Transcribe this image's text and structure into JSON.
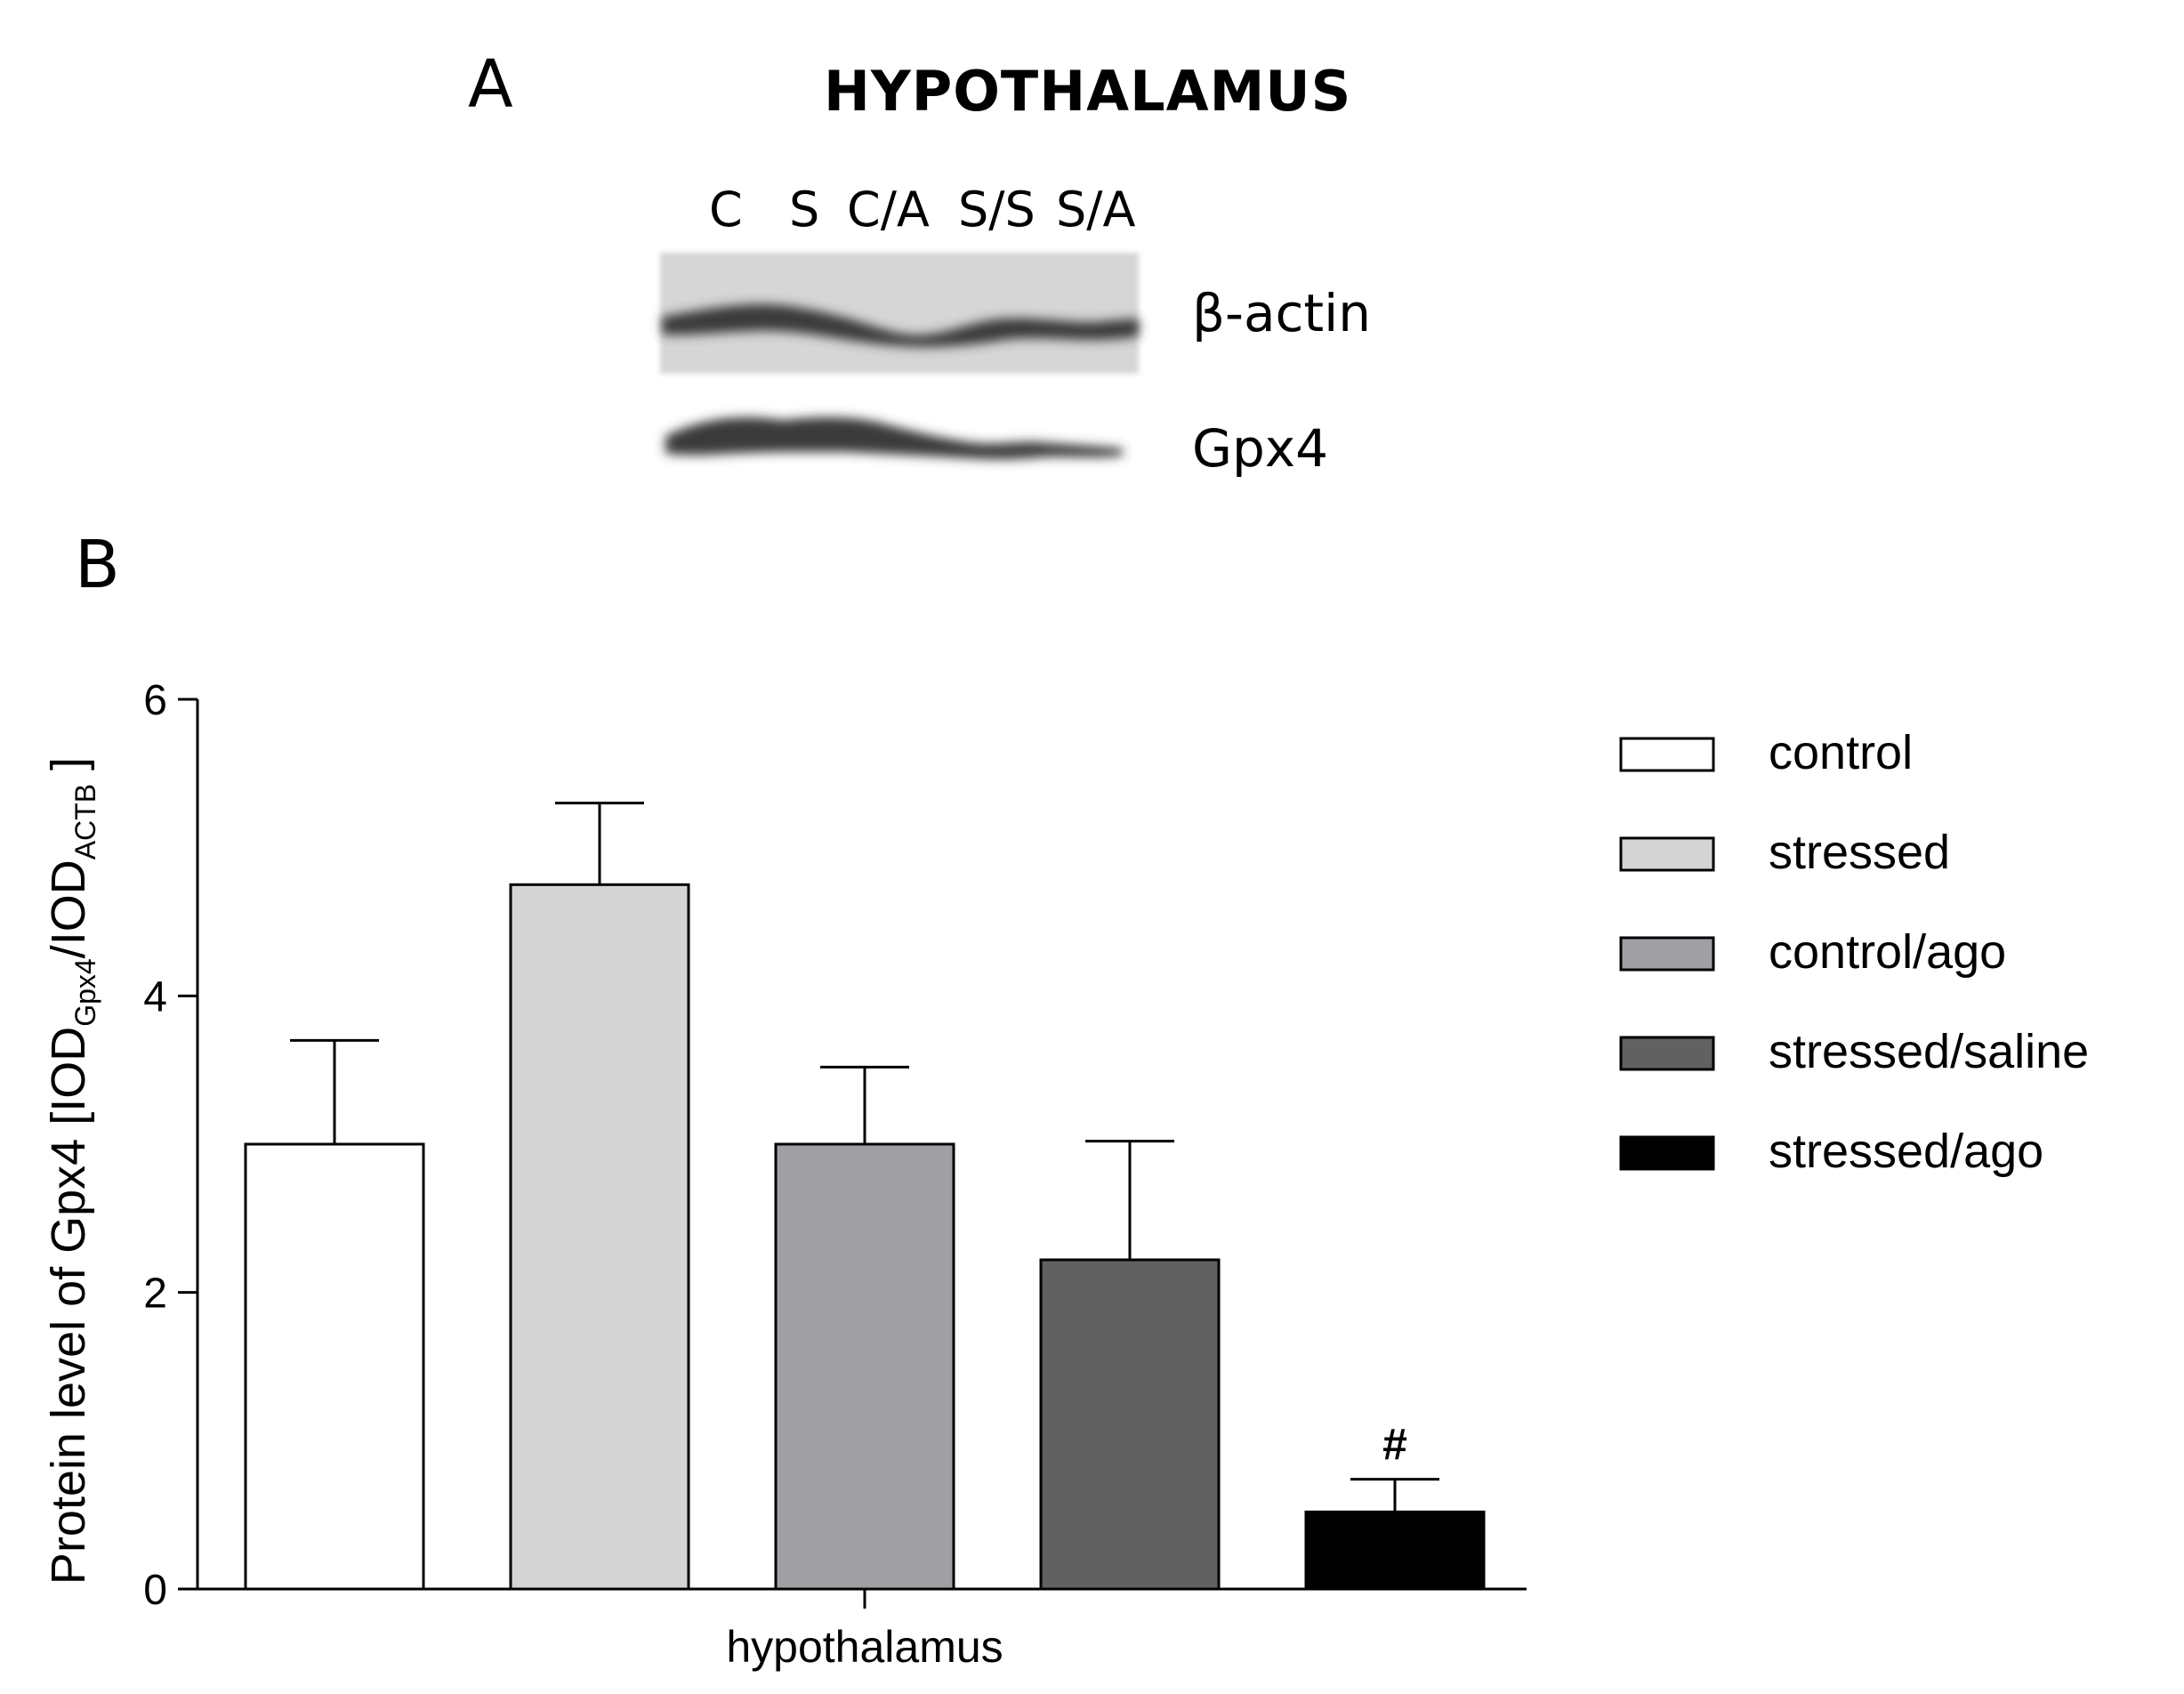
{
  "panel_a": {
    "letter": "A",
    "title": "HYPOTHALAMUS",
    "lanes": [
      "C",
      "S",
      "C/A",
      "S/S",
      "S/A"
    ],
    "bands": [
      "β-actin",
      "Gpx4"
    ],
    "blot_colors": {
      "background": "#d6d6d6",
      "band": "#3a3a3a"
    }
  },
  "panel_b": {
    "letter": "B"
  },
  "chart_data": {
    "type": "bar",
    "categories": [
      "hypothalamus"
    ],
    "xlabel": "hypothalamus",
    "ylabel_main": "Protein level of Gpx4 [IOD",
    "ylabel_sub1": "Gpx4",
    "ylabel_mid": "/IOD",
    "ylabel_sub2": "ACTB",
    "ylabel_end": " ]",
    "ylim": [
      0,
      6
    ],
    "yticks": [
      "0",
      "2",
      "4",
      "6"
    ],
    "grid": false,
    "legend_position": "right",
    "series": [
      {
        "name": "control",
        "values": [
          3.0
        ],
        "error": [
          0.7
        ],
        "color": "#ffffff",
        "annotation": ""
      },
      {
        "name": "stressed",
        "values": [
          4.75
        ],
        "error": [
          0.55
        ],
        "color": "#d4d4d4",
        "annotation": ""
      },
      {
        "name": "control/ago",
        "values": [
          3.0
        ],
        "error": [
          0.52
        ],
        "color": "#a0a0a4",
        "annotation": ""
      },
      {
        "name": "stressed/saline",
        "values": [
          2.22
        ],
        "error": [
          0.8
        ],
        "color": "#616161",
        "annotation": ""
      },
      {
        "name": "stressed/ago",
        "values": [
          0.52
        ],
        "error": [
          0.22
        ],
        "color": "#000000",
        "annotation": "#"
      }
    ]
  }
}
